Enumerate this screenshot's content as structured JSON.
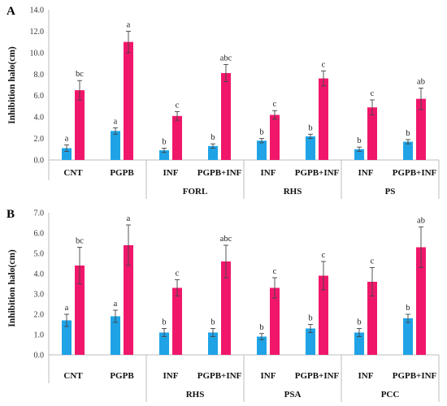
{
  "chart_data": [
    {
      "panel": "A",
      "type": "bar",
      "ylabel": "Inhibition halo(cm)",
      "ylim": [
        0,
        14
      ],
      "yticks": [
        "0.0",
        "2.0",
        "4.0",
        "6.0",
        "8.0",
        "10.0",
        "12.0",
        "14.0"
      ],
      "categories": [
        "CNT",
        "PGPB",
        "INF",
        "PGPB+INF",
        "INF",
        "PGPB+INF",
        "INF",
        "PGPB+INF"
      ],
      "groups": [
        {
          "label": "",
          "span": [
            0,
            1
          ]
        },
        {
          "label": "FORL",
          "span": [
            2,
            3
          ]
        },
        {
          "label": "RHS",
          "span": [
            4,
            5
          ]
        },
        {
          "label": "PS",
          "span": [
            6,
            7
          ]
        }
      ],
      "series": [
        {
          "color": "#1fa3e6",
          "values": [
            1.1,
            2.7,
            0.9,
            1.3,
            1.8,
            2.2,
            1.0,
            1.7
          ],
          "errors": [
            0.3,
            0.3,
            0.2,
            0.2,
            0.2,
            0.2,
            0.2,
            0.2
          ],
          "labels": [
            "a",
            "a",
            "b",
            "b",
            "b",
            "b",
            "b",
            "b"
          ]
        },
        {
          "color": "#f0176b",
          "values": [
            6.5,
            11.0,
            4.1,
            8.1,
            4.2,
            7.6,
            4.9,
            5.7
          ],
          "errors": [
            0.9,
            1.0,
            0.4,
            0.8,
            0.4,
            0.7,
            0.7,
            1.0
          ],
          "labels": [
            "bc",
            "a",
            "c",
            "abc",
            "c",
            "c",
            "c",
            "ab"
          ]
        }
      ]
    },
    {
      "panel": "B",
      "type": "bar",
      "ylabel": "Inhibition halo(cm)",
      "ylim": [
        0,
        7
      ],
      "yticks": [
        "0.0",
        "1.0",
        "2.0",
        "3.0",
        "4.0",
        "5.0",
        "6.0",
        "7.0"
      ],
      "categories": [
        "CNT",
        "PGPB",
        "INF",
        "PGPB+INF",
        "INF",
        "PGPB+INF",
        "INF",
        "PGPB+INF"
      ],
      "groups": [
        {
          "label": "",
          "span": [
            0,
            1
          ]
        },
        {
          "label": "RHS",
          "span": [
            2,
            3
          ]
        },
        {
          "label": "PSA",
          "span": [
            4,
            5
          ]
        },
        {
          "label": "PCC",
          "span": [
            6,
            7
          ]
        }
      ],
      "series": [
        {
          "color": "#1fa3e6",
          "values": [
            1.7,
            1.9,
            1.1,
            1.1,
            0.9,
            1.3,
            1.1,
            1.8
          ],
          "errors": [
            0.3,
            0.3,
            0.2,
            0.2,
            0.15,
            0.2,
            0.2,
            0.2
          ],
          "labels": [
            "a",
            "a",
            "b",
            "b",
            "b",
            "b",
            "b",
            "b"
          ]
        },
        {
          "color": "#f0176b",
          "values": [
            4.4,
            5.4,
            3.3,
            4.6,
            3.3,
            3.9,
            3.6,
            5.3
          ],
          "errors": [
            0.9,
            1.0,
            0.4,
            0.8,
            0.5,
            0.7,
            0.7,
            1.0
          ],
          "labels": [
            "bc",
            "a",
            "c",
            "abc",
            "c",
            "c",
            "c",
            "ab"
          ]
        }
      ]
    }
  ]
}
